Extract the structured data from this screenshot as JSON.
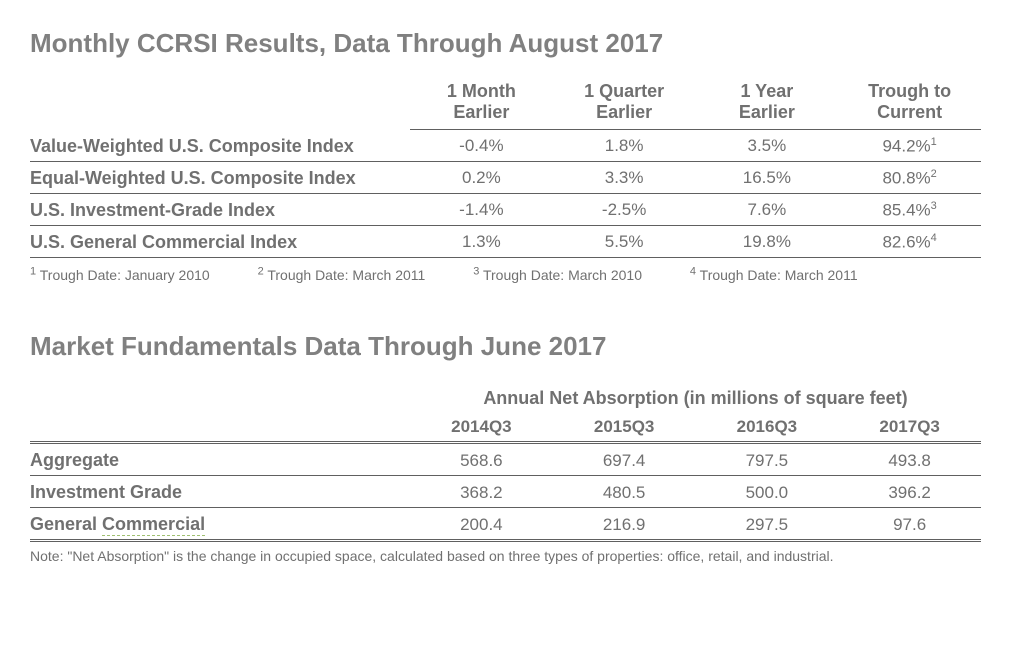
{
  "section1": {
    "title": "Monthly CCRSI Results, Data Through August 2017",
    "headers": {
      "c1a": "1 Month",
      "c1b": "Earlier",
      "c2a": "1 Quarter",
      "c2b": "Earlier",
      "c3a": "1 Year",
      "c3b": "Earlier",
      "c4a": "Trough to",
      "c4b": "Current"
    },
    "rows": [
      {
        "label": "Value-Weighted U.S. Composite Index",
        "c1": "-0.4%",
        "c2": "1.8%",
        "c3": "3.5%",
        "c4": "94.2%",
        "sup": "1"
      },
      {
        "label": "Equal-Weighted U.S. Composite Index",
        "c1": "0.2%",
        "c2": "3.3%",
        "c3": "16.5%",
        "c4": "80.8%",
        "sup": "2"
      },
      {
        "label": "U.S. Investment-Grade Index",
        "c1": "-1.4%",
        "c2": "-2.5%",
        "c3": "7.6%",
        "c4": "85.4%",
        "sup": "3"
      },
      {
        "label": "U.S. General Commercial Index",
        "c1": "1.3%",
        "c2": "5.5%",
        "c3": "19.8%",
        "c4": "82.6%",
        "sup": "4"
      }
    ],
    "footnotes": [
      {
        "sup": "1",
        "text": "Trough Date: January 2010"
      },
      {
        "sup": "2",
        "text": "Trough Date: March 2011"
      },
      {
        "sup": "3",
        "text": "Trough Date: March 2010"
      },
      {
        "sup": "4",
        "text": "Trough Date: March 2011"
      }
    ]
  },
  "section2": {
    "title": "Market Fundamentals Data Through June 2017",
    "overheader": "Annual Net Absorption (in millions of square feet)",
    "headers": {
      "c1": "2014Q3",
      "c2": "2015Q3",
      "c3": "2016Q3",
      "c4": "2017Q3"
    },
    "rows": [
      {
        "label": "Aggregate",
        "c1": "568.6",
        "c2": "697.4",
        "c3": "797.5",
        "c4": "493.8"
      },
      {
        "label": "Investment Grade",
        "c1": "368.2",
        "c2": "480.5",
        "c3": "500.0",
        "c4": "396.2"
      },
      {
        "label_prefix": "General ",
        "label_underlined": "Commercial",
        "c1": "200.4",
        "c2": "216.9",
        "c3": "297.5",
        "c4": "97.6"
      }
    ],
    "note": "Note: \"Net Absorption\" is the change in occupied space, calculated based on three types of properties: office, retail, and industrial."
  },
  "style": {
    "text_color": "#707070",
    "title_color": "#808080",
    "border_color": "#606060",
    "underline_color": "#a0c070",
    "background": "#ffffff",
    "title_fontsize": 26,
    "header_fontsize": 18,
    "cell_fontsize": 17,
    "footnote_fontsize": 14
  }
}
